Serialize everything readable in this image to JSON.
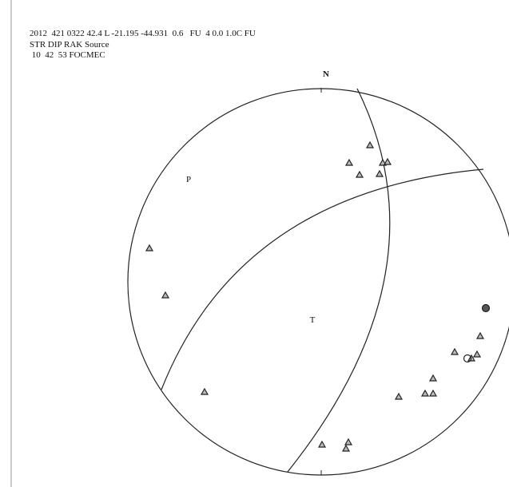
{
  "header": {
    "lines": [
      "2012  421 0322 42.4 L -21.195 -44.931  0.6   FU  4 0.0 1.0C FU",
      "STR DIP RAK Source",
      " 10  42  53 FOCMEC"
    ]
  },
  "labels": {
    "north": "N",
    "p_axis": "P",
    "t_axis": "T"
  }
}
